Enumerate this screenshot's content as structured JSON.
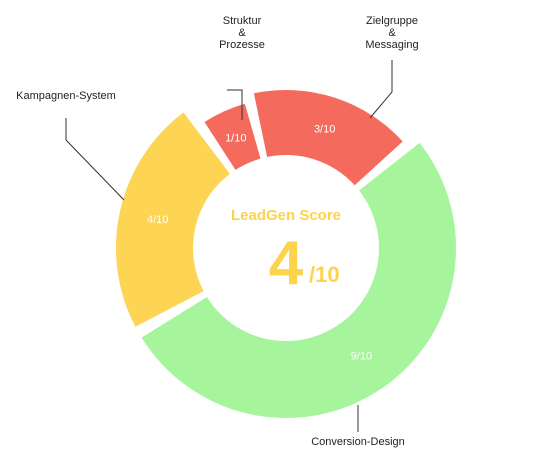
{
  "chart_data": {
    "type": "pie",
    "variant": "donut",
    "center": {
      "title": "LeadGen Score",
      "score": "4",
      "score_suffix": "/10",
      "color": "#fcd34d"
    },
    "slices": [
      {
        "category": "Struktur\n&\nProzesse",
        "value": 1,
        "label": "1/10",
        "color": "#f46b5d"
      },
      {
        "category": "Zielgruppe\n&\nMessaging",
        "value": 3,
        "label": "3/10",
        "color": "#f46b5d"
      },
      {
        "category": "Conversion-Design",
        "value": 9,
        "label": "9/10",
        "color": "#a6f59d"
      },
      {
        "category": "Kampagnen-System",
        "value": 4,
        "label": "4/10",
        "color": "#fdd453"
      }
    ]
  }
}
